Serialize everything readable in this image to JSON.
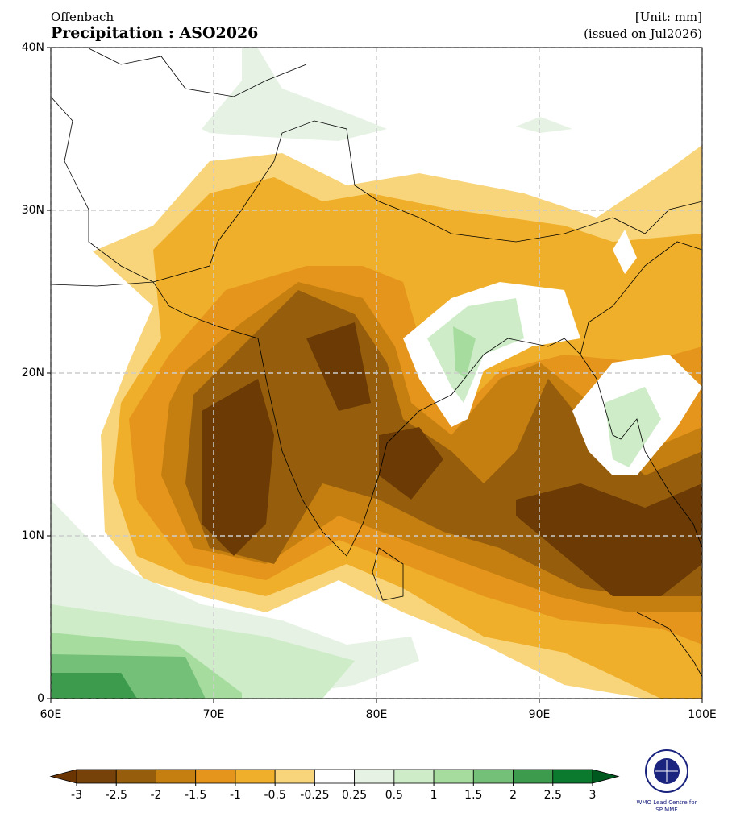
{
  "header": {
    "station": "Offenbach",
    "title": "Precipitation : ASO2026",
    "unit": "[Unit: mm]",
    "issued": "(issued on Jul2026)"
  },
  "map": {
    "xlim": [
      60,
      100
    ],
    "ylim": [
      0,
      40
    ],
    "xticks": [
      {
        "value": 60,
        "label": "60E"
      },
      {
        "value": 70,
        "label": "70E"
      },
      {
        "value": 80,
        "label": "80E"
      },
      {
        "value": 90,
        "label": "90E"
      },
      {
        "value": 100,
        "label": "100E"
      }
    ],
    "yticks": [
      0,
      {
        "value": 10,
        "label": "10N"
      },
      {
        "value": 20,
        "label": "20N"
      },
      {
        "value": 30,
        "label": "30N"
      },
      {
        "value": 40,
        "label": "40N"
      }
    ],
    "grid": true
  },
  "colorbar": {
    "levels": [
      -3,
      -2.5,
      -2,
      -1.5,
      -1,
      -0.5,
      -0.25,
      0.25,
      0.5,
      1,
      1.5,
      2,
      2.5,
      3
    ],
    "colors": [
      "#774209",
      "#965e0c",
      "#c57f10",
      "#e5951b",
      "#efaf2a",
      "#f8d57a",
      "#ffffff",
      "#e6f2e3",
      "#cdecc7",
      "#a7dc9f",
      "#74c078",
      "#3c9b4d",
      "#0c7a2e"
    ],
    "extend_colors": [
      "#6b3503",
      "#005a20"
    ]
  },
  "logo": {
    "lines": [
      "WMO Lead Centre for",
      "SP MME"
    ]
  }
}
